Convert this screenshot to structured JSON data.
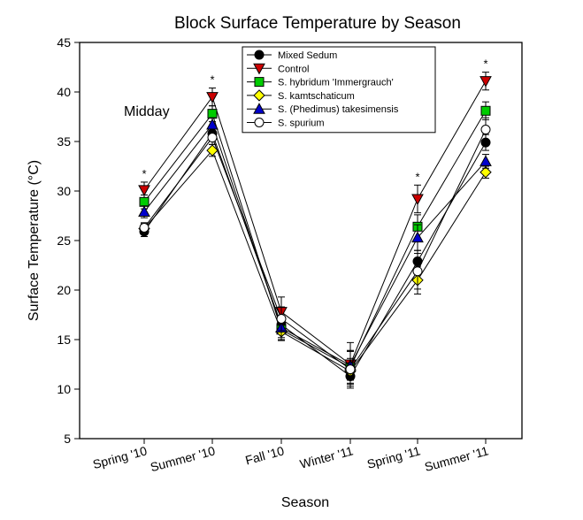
{
  "chart_data": {
    "type": "line",
    "title": "Block Surface Temperature by Season",
    "xlabel": "Season",
    "ylabel": "Surface Temperature (°C)",
    "ylim": [
      5,
      45
    ],
    "yticks": [
      5,
      10,
      15,
      20,
      25,
      30,
      35,
      40,
      45
    ],
    "categories": [
      "Spring '10",
      "Summer '10",
      "Fall '10",
      "Winter '11",
      "Spring '11",
      "Summer '11"
    ],
    "annotation": "Midday",
    "significance": {
      "marker": "*",
      "categories": [
        "Spring '10",
        "Summer '10",
        "Spring '11",
        "Summer '11"
      ]
    },
    "legend_position": "top-center",
    "series": [
      {
        "name": "Mixed Sedum",
        "marker": "circle",
        "color": "#000000",
        "values": [
          25.9,
          35.8,
          16.5,
          11.3,
          22.9,
          34.9
        ],
        "errors": [
          0.5,
          0.5,
          0.5,
          0.3,
          1.1,
          0.8
        ]
      },
      {
        "name": "Control",
        "marker": "triangle-down",
        "color": "#cc0000",
        "values": [
          30.1,
          39.5,
          17.8,
          12.5,
          29.2,
          41.1
        ],
        "errors": [
          0.8,
          0.9,
          1.5,
          2.2,
          1.4,
          0.9
        ]
      },
      {
        "name": "S. hybridum 'Immergrauch'",
        "marker": "square",
        "color": "#00cc00",
        "values": [
          28.9,
          37.8,
          16.0,
          12.2,
          26.4,
          38.1
        ],
        "errors": [
          0.7,
          0.8,
          1.0,
          1.6,
          1.2,
          0.9
        ]
      },
      {
        "name": "S. kamtschaticum",
        "marker": "diamond",
        "color": "#ffff00",
        "values": [
          26.2,
          34.1,
          15.8,
          11.8,
          21.0,
          31.9
        ],
        "errors": [
          0.5,
          0.6,
          0.9,
          1.3,
          1.4,
          0.6
        ]
      },
      {
        "name": "S. (Phedimus) takesimensis",
        "marker": "triangle-up",
        "color": "#0000cc",
        "values": [
          27.9,
          36.7,
          16.2,
          12.4,
          25.3,
          33.0
        ],
        "errors": [
          0.6,
          0.7,
          1.0,
          1.5,
          1.3,
          0.7
        ]
      },
      {
        "name": "S. spurium",
        "marker": "circle-open",
        "color": "#ffffff",
        "values": [
          26.3,
          35.4,
          17.1,
          12.0,
          21.9,
          36.2
        ],
        "errors": [
          0.5,
          0.7,
          1.2,
          1.9,
          1.8,
          1.2
        ]
      }
    ]
  }
}
